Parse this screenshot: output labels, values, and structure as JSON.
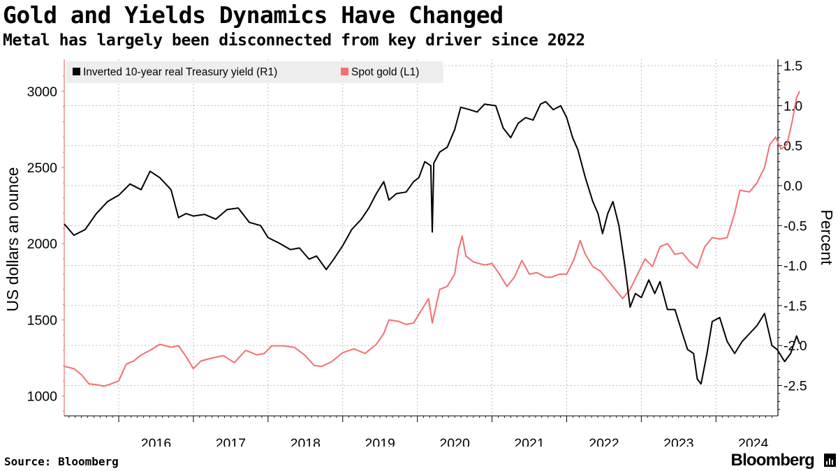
{
  "header": {
    "title": "Gold and Yields Dynamics Have Changed",
    "subtitle": "Metal has largely been disconnected from key driver since 2022"
  },
  "footer": {
    "source": "Source: Bloomberg",
    "brand": "Bloomberg"
  },
  "chart_data": {
    "type": "line",
    "title": "Gold and Yields Dynamics Have Changed",
    "subtitle": "Metal has largely been disconnected from key driver since 2022",
    "xlabel": "",
    "ylabel_left": "US dollars an ounce",
    "ylabel_right": "Percent",
    "x_ticks": [
      "2016",
      "2017",
      "2018",
      "2019",
      "2020",
      "2021",
      "2022",
      "2023",
      "2024"
    ],
    "xlim": [
      2015.27,
      2024.83
    ],
    "ylim_left": [
      870,
      3210
    ],
    "ylim_right": [
      -2.88,
      1.58
    ],
    "left_ticks": [
      "1000",
      "1500",
      "2000",
      "2500",
      "3000"
    ],
    "right_ticks": [
      "1.5",
      "1.0",
      "0.5",
      "0.0",
      "-0.5",
      "-1.0",
      "-1.5",
      "-2.0",
      "-2.5"
    ],
    "grid": true,
    "legend_position": "top-left",
    "colors": {
      "gold": "#f27171",
      "yield": "#000000",
      "grid": "#bdbdbd",
      "axis": "#000000",
      "legend_bg": "#eeeeee"
    },
    "series": [
      {
        "name": "Inverted 10-year real Treasury yield (R1)",
        "axis": "right",
        "color": "#000000",
        "points": [
          [
            2015.27,
            -0.48
          ],
          [
            2015.4,
            -0.62
          ],
          [
            2015.55,
            -0.55
          ],
          [
            2015.7,
            -0.35
          ],
          [
            2015.85,
            -0.2
          ],
          [
            2016.0,
            -0.12
          ],
          [
            2016.15,
            0.02
          ],
          [
            2016.3,
            -0.05
          ],
          [
            2016.42,
            0.18
          ],
          [
            2016.55,
            0.1
          ],
          [
            2016.7,
            -0.05
          ],
          [
            2016.8,
            -0.4
          ],
          [
            2016.9,
            -0.35
          ],
          [
            2017.0,
            -0.38
          ],
          [
            2017.15,
            -0.36
          ],
          [
            2017.3,
            -0.42
          ],
          [
            2017.45,
            -0.3
          ],
          [
            2017.6,
            -0.28
          ],
          [
            2017.75,
            -0.46
          ],
          [
            2017.9,
            -0.5
          ],
          [
            2018.0,
            -0.65
          ],
          [
            2018.15,
            -0.72
          ],
          [
            2018.3,
            -0.8
          ],
          [
            2018.42,
            -0.78
          ],
          [
            2018.55,
            -0.92
          ],
          [
            2018.65,
            -0.88
          ],
          [
            2018.78,
            -1.05
          ],
          [
            2018.88,
            -0.92
          ],
          [
            2019.0,
            -0.75
          ],
          [
            2019.12,
            -0.55
          ],
          [
            2019.25,
            -0.42
          ],
          [
            2019.35,
            -0.28
          ],
          [
            2019.45,
            -0.1
          ],
          [
            2019.55,
            0.05
          ],
          [
            2019.62,
            -0.18
          ],
          [
            2019.72,
            -0.1
          ],
          [
            2019.85,
            -0.08
          ],
          [
            2019.95,
            0.05
          ],
          [
            2020.02,
            0.1
          ],
          [
            2020.1,
            0.3
          ],
          [
            2020.18,
            0.25
          ],
          [
            2020.2,
            -0.58
          ],
          [
            2020.22,
            0.28
          ],
          [
            2020.3,
            0.42
          ],
          [
            2020.4,
            0.48
          ],
          [
            2020.5,
            0.7
          ],
          [
            2020.58,
            0.98
          ],
          [
            2020.7,
            0.95
          ],
          [
            2020.8,
            0.92
          ],
          [
            2020.9,
            1.02
          ],
          [
            2021.05,
            1.0
          ],
          [
            2021.15,
            0.72
          ],
          [
            2021.25,
            0.6
          ],
          [
            2021.35,
            0.78
          ],
          [
            2021.45,
            0.85
          ],
          [
            2021.55,
            0.82
          ],
          [
            2021.65,
            1.02
          ],
          [
            2021.72,
            1.05
          ],
          [
            2021.82,
            0.95
          ],
          [
            2021.92,
            1.0
          ],
          [
            2022.0,
            0.85
          ],
          [
            2022.08,
            0.6
          ],
          [
            2022.15,
            0.45
          ],
          [
            2022.25,
            0.1
          ],
          [
            2022.35,
            -0.2
          ],
          [
            2022.42,
            -0.35
          ],
          [
            2022.48,
            -0.6
          ],
          [
            2022.55,
            -0.35
          ],
          [
            2022.62,
            -0.2
          ],
          [
            2022.7,
            -0.5
          ],
          [
            2022.78,
            -1.0
          ],
          [
            2022.85,
            -1.52
          ],
          [
            2022.92,
            -1.35
          ],
          [
            2023.0,
            -1.4
          ],
          [
            2023.1,
            -1.18
          ],
          [
            2023.18,
            -1.35
          ],
          [
            2023.25,
            -1.2
          ],
          [
            2023.35,
            -1.55
          ],
          [
            2023.45,
            -1.55
          ],
          [
            2023.55,
            -1.85
          ],
          [
            2023.62,
            -2.05
          ],
          [
            2023.7,
            -2.1
          ],
          [
            2023.75,
            -2.42
          ],
          [
            2023.8,
            -2.48
          ],
          [
            2023.88,
            -2.1
          ],
          [
            2023.95,
            -1.7
          ],
          [
            2024.05,
            -1.65
          ],
          [
            2024.15,
            -1.95
          ],
          [
            2024.25,
            -2.1
          ],
          [
            2024.35,
            -1.95
          ],
          [
            2024.45,
            -1.85
          ],
          [
            2024.55,
            -1.75
          ],
          [
            2024.65,
            -1.6
          ],
          [
            2024.75,
            -2.0
          ],
          [
            2024.82,
            -2.05
          ],
          [
            2024.92,
            -2.2
          ],
          [
            2025.0,
            -2.1
          ],
          [
            2025.08,
            -1.88
          ],
          [
            2025.12,
            -1.98
          ]
        ]
      },
      {
        "name": "Spot gold (L1)",
        "axis": "left",
        "color": "#f27171",
        "points": [
          [
            2015.27,
            1195
          ],
          [
            2015.4,
            1180
          ],
          [
            2015.5,
            1140
          ],
          [
            2015.6,
            1080
          ],
          [
            2015.7,
            1075
          ],
          [
            2015.8,
            1065
          ],
          [
            2015.9,
            1080
          ],
          [
            2016.0,
            1100
          ],
          [
            2016.1,
            1210
          ],
          [
            2016.2,
            1230
          ],
          [
            2016.3,
            1270
          ],
          [
            2016.42,
            1300
          ],
          [
            2016.55,
            1340
          ],
          [
            2016.7,
            1320
          ],
          [
            2016.8,
            1330
          ],
          [
            2016.9,
            1260
          ],
          [
            2017.0,
            1180
          ],
          [
            2017.1,
            1230
          ],
          [
            2017.25,
            1250
          ],
          [
            2017.4,
            1265
          ],
          [
            2017.55,
            1220
          ],
          [
            2017.7,
            1300
          ],
          [
            2017.85,
            1270
          ],
          [
            2017.95,
            1280
          ],
          [
            2018.05,
            1330
          ],
          [
            2018.2,
            1330
          ],
          [
            2018.35,
            1320
          ],
          [
            2018.5,
            1265
          ],
          [
            2018.62,
            1200
          ],
          [
            2018.72,
            1195
          ],
          [
            2018.85,
            1225
          ],
          [
            2019.0,
            1285
          ],
          [
            2019.15,
            1310
          ],
          [
            2019.3,
            1280
          ],
          [
            2019.45,
            1340
          ],
          [
            2019.55,
            1410
          ],
          [
            2019.62,
            1500
          ],
          [
            2019.75,
            1490
          ],
          [
            2019.85,
            1470
          ],
          [
            2019.95,
            1480
          ],
          [
            2020.05,
            1560
          ],
          [
            2020.15,
            1640
          ],
          [
            2020.2,
            1480
          ],
          [
            2020.3,
            1700
          ],
          [
            2020.4,
            1720
          ],
          [
            2020.5,
            1800
          ],
          [
            2020.55,
            1960
          ],
          [
            2020.6,
            2050
          ],
          [
            2020.65,
            1920
          ],
          [
            2020.75,
            1880
          ],
          [
            2020.9,
            1860
          ],
          [
            2021.0,
            1870
          ],
          [
            2021.1,
            1800
          ],
          [
            2021.2,
            1720
          ],
          [
            2021.3,
            1780
          ],
          [
            2021.4,
            1890
          ],
          [
            2021.5,
            1800
          ],
          [
            2021.6,
            1810
          ],
          [
            2021.72,
            1780
          ],
          [
            2021.8,
            1780
          ],
          [
            2021.9,
            1800
          ],
          [
            2022.0,
            1800
          ],
          [
            2022.1,
            1900
          ],
          [
            2022.18,
            2020
          ],
          [
            2022.25,
            1930
          ],
          [
            2022.35,
            1850
          ],
          [
            2022.45,
            1820
          ],
          [
            2022.55,
            1760
          ],
          [
            2022.65,
            1700
          ],
          [
            2022.75,
            1640
          ],
          [
            2022.85,
            1700
          ],
          [
            2022.95,
            1800
          ],
          [
            2023.05,
            1900
          ],
          [
            2023.15,
            1850
          ],
          [
            2023.25,
            1980
          ],
          [
            2023.35,
            2000
          ],
          [
            2023.45,
            1930
          ],
          [
            2023.55,
            1940
          ],
          [
            2023.65,
            1880
          ],
          [
            2023.75,
            1840
          ],
          [
            2023.85,
            1980
          ],
          [
            2023.95,
            2040
          ],
          [
            2024.05,
            2030
          ],
          [
            2024.15,
            2040
          ],
          [
            2024.25,
            2200
          ],
          [
            2024.32,
            2350
          ],
          [
            2024.45,
            2340
          ],
          [
            2024.55,
            2400
          ],
          [
            2024.65,
            2500
          ],
          [
            2024.72,
            2650
          ],
          [
            2024.8,
            2700
          ],
          [
            2024.87,
            2620
          ],
          [
            2024.95,
            2650
          ],
          [
            2025.02,
            2800
          ],
          [
            2025.08,
            2960
          ],
          [
            2025.12,
            3000
          ]
        ]
      }
    ]
  }
}
